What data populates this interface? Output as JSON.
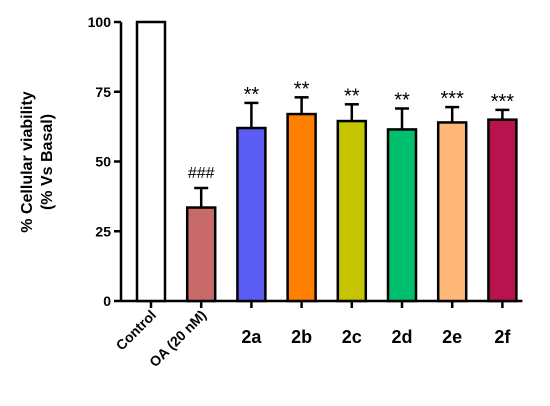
{
  "chart_data": {
    "type": "bar",
    "categories": [
      "Control",
      "OA (20 nM)",
      "2a",
      "2b",
      "2c",
      "2d",
      "2e",
      "2f"
    ],
    "values": [
      100,
      33.5,
      62,
      67,
      64.5,
      61.5,
      64,
      65
    ],
    "errors": [
      0,
      7,
      9,
      6,
      6,
      7.5,
      5.5,
      3.5
    ],
    "annotations": [
      "",
      "###",
      "**",
      "**",
      "**",
      "**",
      "***",
      "***"
    ],
    "colors": [
      "#ffffff",
      "#c96a6a",
      "#5a5cf2",
      "#ff8000",
      "#c4c400",
      "#00c06e",
      "#ffb87a",
      "#b8134e"
    ],
    "ylabel_line1": "% Cellular viability",
    "ylabel_line2": "(% Vs Basal)",
    "yticks": [
      "0",
      "25",
      "50",
      "75",
      "100"
    ],
    "ylim": [
      0,
      100
    ],
    "grid": false
  }
}
